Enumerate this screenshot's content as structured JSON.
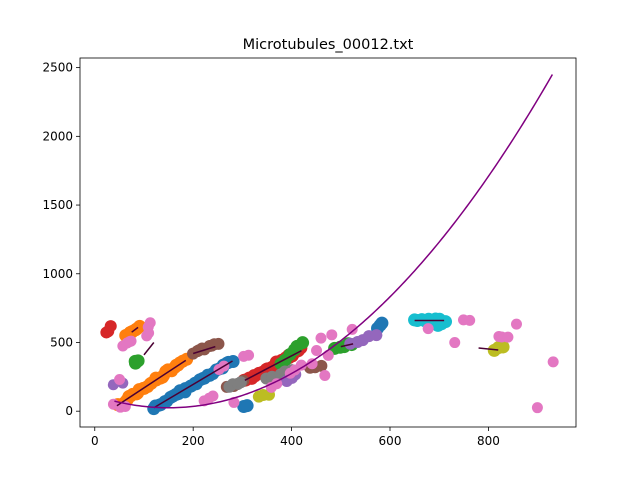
{
  "chart_data": {
    "type": "scatter",
    "title": "Microtubules_00012.txt",
    "xlabel": "",
    "ylabel": "",
    "xlim": [
      -30,
      978
    ],
    "ylim": [
      -115,
      2570
    ],
    "xticks": [
      0,
      200,
      400,
      600,
      800
    ],
    "yticks": [
      0,
      500,
      1000,
      1500,
      2000,
      2500
    ],
    "grid": false,
    "legend": "none",
    "colors": {
      "blue": "#1f77b4",
      "orange": "#ff7f0e",
      "green": "#2ca02c",
      "red": "#d62728",
      "purple": "#9467bd",
      "brown": "#8c564b",
      "pink": "#e377c2",
      "gray": "#7f7f7f",
      "olive": "#bcbd22",
      "cyan": "#17becf",
      "fit_curve": "#800080",
      "fit_line": "#4b0033"
    },
    "clusters": [
      {
        "color": "blue",
        "from": [
          120,
          20
        ],
        "to": [
          280,
          365
        ],
        "count": 30,
        "size": 6.5
      },
      {
        "color": "blue",
        "from": [
          300,
          30
        ],
        "to": [
          310,
          40
        ],
        "count": 2,
        "size": 6.5
      },
      {
        "color": "blue",
        "from": [
          575,
          610
        ],
        "to": [
          585,
          635
        ],
        "count": 3,
        "size": 6.5
      },
      {
        "color": "orange",
        "from": [
          45,
          40
        ],
        "to": [
          185,
          370
        ],
        "count": 30,
        "size": 6.5
      },
      {
        "color": "orange",
        "from": [
          65,
          540
        ],
        "to": [
          90,
          620
        ],
        "count": 8,
        "size": 6.5
      },
      {
        "color": "red",
        "from": [
          25,
          570
        ],
        "to": [
          35,
          610
        ],
        "count": 3,
        "size": 6
      },
      {
        "color": "red",
        "from": [
          305,
          220
        ],
        "to": [
          420,
          450
        ],
        "count": 26,
        "size": 6.5
      },
      {
        "color": "green",
        "from": [
          80,
          350
        ],
        "to": [
          90,
          370
        ],
        "count": 3,
        "size": 6.5
      },
      {
        "color": "green",
        "from": [
          380,
          350
        ],
        "to": [
          420,
          500
        ],
        "count": 6,
        "size": 6.5
      },
      {
        "color": "green",
        "from": [
          490,
          450
        ],
        "to": [
          525,
          490
        ],
        "count": 5,
        "size": 6.5
      },
      {
        "color": "brown",
        "from": [
          200,
          420
        ],
        "to": [
          250,
          490
        ],
        "count": 9,
        "size": 6
      },
      {
        "color": "brown",
        "from": [
          270,
          180
        ],
        "to": [
          300,
          220
        ],
        "count": 4,
        "size": 6
      },
      {
        "color": "brown",
        "from": [
          440,
          310
        ],
        "to": [
          460,
          340
        ],
        "count": 3,
        "size": 6
      },
      {
        "color": "gray",
        "from": [
          275,
          175
        ],
        "to": [
          295,
          215
        ],
        "count": 4,
        "size": 6
      },
      {
        "color": "gray",
        "from": [
          350,
          240
        ],
        "to": [
          400,
          300
        ],
        "count": 5,
        "size": 6
      },
      {
        "color": "purple",
        "from": [
          40,
          190
        ],
        "to": [
          55,
          210
        ],
        "count": 2,
        "size": 5.5
      },
      {
        "color": "purple",
        "from": [
          390,
          220
        ],
        "to": [
          410,
          260
        ],
        "count": 3,
        "size": 6
      },
      {
        "color": "purple",
        "from": [
          520,
          500
        ],
        "to": [
          570,
          550
        ],
        "count": 5,
        "size": 6
      },
      {
        "color": "olive",
        "from": [
          335,
          100
        ],
        "to": [
          355,
          130
        ],
        "count": 3,
        "size": 6
      },
      {
        "color": "olive",
        "from": [
          810,
          445
        ],
        "to": [
          830,
          460
        ],
        "count": 3,
        "size": 6.5
      },
      {
        "color": "cyan",
        "from": [
          650,
          660
        ],
        "to": [
          700,
          660
        ],
        "count": 8,
        "size": 6.5
      },
      {
        "color": "cyan",
        "from": [
          700,
          620
        ],
        "to": [
          710,
          660
        ],
        "count": 3,
        "size": 6.5
      },
      {
        "color": "pink",
        "from": [
          40,
          40
        ],
        "to": [
          60,
          40
        ],
        "count": 3,
        "size": 5.5
      },
      {
        "color": "pink",
        "from": [
          50,
          240
        ],
        "to": [
          55,
          240
        ],
        "count": 1,
        "size": 5.5
      },
      {
        "color": "pink",
        "from": [
          60,
          470
        ],
        "to": [
          75,
          520
        ],
        "count": 4,
        "size": 5.5
      },
      {
        "color": "pink",
        "from": [
          105,
          540
        ],
        "to": [
          115,
          640
        ],
        "count": 4,
        "size": 5.5
      },
      {
        "color": "pink",
        "from": [
          225,
          70
        ],
        "to": [
          240,
          120
        ],
        "count": 3,
        "size": 5.5
      },
      {
        "color": "pink",
        "from": [
          255,
          300
        ],
        "to": [
          265,
          320
        ],
        "count": 2,
        "size": 5.5
      },
      {
        "color": "pink",
        "from": [
          285,
          60
        ],
        "to": [
          285,
          60
        ],
        "count": 1,
        "size": 5.5
      },
      {
        "color": "pink",
        "from": [
          305,
          395
        ],
        "to": [
          315,
          405
        ],
        "count": 2,
        "size": 5.5
      },
      {
        "color": "pink",
        "from": [
          360,
          180
        ],
        "to": [
          370,
          200
        ],
        "count": 2,
        "size": 5.5
      },
      {
        "color": "pink",
        "from": [
          395,
          280
        ],
        "to": [
          420,
          330
        ],
        "count": 3,
        "size": 5.5
      },
      {
        "color": "pink",
        "from": [
          440,
          340
        ],
        "to": [
          460,
          540
        ],
        "count": 3,
        "size": 5.5
      },
      {
        "color": "pink",
        "from": [
          470,
          260
        ],
        "to": [
          475,
          400
        ],
        "count": 2,
        "size": 5.5
      },
      {
        "color": "pink",
        "from": [
          480,
          560
        ],
        "to": [
          525,
          600
        ],
        "count": 2,
        "size": 5.5
      },
      {
        "color": "pink",
        "from": [
          680,
          600
        ],
        "to": [
          690,
          600
        ],
        "count": 1,
        "size": 5.5
      },
      {
        "color": "pink",
        "from": [
          730,
          490
        ],
        "to": [
          735,
          490
        ],
        "count": 1,
        "size": 5.5
      },
      {
        "color": "pink",
        "from": [
          750,
          660
        ],
        "to": [
          765,
          660
        ],
        "count": 2,
        "size": 5.5
      },
      {
        "color": "pink",
        "from": [
          820,
          540
        ],
        "to": [
          840,
          540
        ],
        "count": 3,
        "size": 5.5
      },
      {
        "color": "pink",
        "from": [
          860,
          640
        ],
        "to": [
          860,
          640
        ],
        "count": 1,
        "size": 5.5
      },
      {
        "color": "pink",
        "from": [
          900,
          30
        ],
        "to": [
          900,
          30
        ],
        "count": 1,
        "size": 5.5
      },
      {
        "color": "pink",
        "from": [
          930,
          350
        ],
        "to": [
          930,
          350
        ],
        "count": 1,
        "size": 5.5
      }
    ],
    "fit_lines": [
      {
        "from": [
          45,
          40
        ],
        "to": [
          185,
          370
        ]
      },
      {
        "from": [
          120,
          25
        ],
        "to": [
          280,
          365
        ]
      },
      {
        "from": [
          305,
          225
        ],
        "to": [
          420,
          440
        ]
      },
      {
        "from": [
          200,
          420
        ],
        "to": [
          245,
          470
        ]
      },
      {
        "from": [
          75,
          575
        ],
        "to": [
          88,
          610
        ]
      },
      {
        "from": [
          100,
          410
        ],
        "to": [
          120,
          500
        ]
      },
      {
        "from": [
          650,
          660
        ],
        "to": [
          710,
          660
        ]
      },
      {
        "from": [
          780,
          460
        ],
        "to": [
          820,
          445
        ]
      },
      {
        "from": [
          500,
          470
        ],
        "to": [
          525,
          490
        ]
      }
    ],
    "fit_curve": {
      "name": "",
      "x_range": [
        40,
        930
      ],
      "min_point": [
        150,
        25
      ],
      "end_point": [
        930,
        2450
      ],
      "shape": "quadratic"
    }
  }
}
